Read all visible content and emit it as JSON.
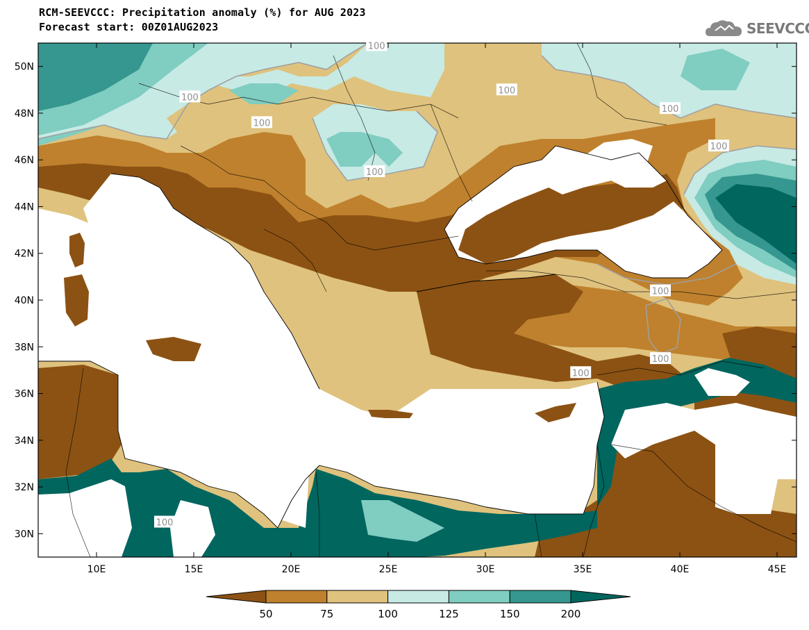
{
  "header": {
    "title": "RCM-SEEVCCC: Precipitation anomaly (%) for AUG 2023",
    "subtitle": "Forecast start: 00Z01AUG2023"
  },
  "logo": {
    "text": "SEEVCCC",
    "icon": "cloud-icon",
    "color": "#808080"
  },
  "map": {
    "lon_range": [
      7,
      46
    ],
    "lat_range": [
      29,
      51
    ],
    "lon_ticks": [
      10,
      15,
      20,
      25,
      30,
      35,
      40,
      45
    ],
    "lon_tick_labels": [
      "10E",
      "15E",
      "20E",
      "25E",
      "30E",
      "35E",
      "40E",
      "45E"
    ],
    "lat_ticks": [
      30,
      32,
      34,
      36,
      38,
      40,
      42,
      44,
      46,
      48,
      50
    ],
    "lat_tick_labels": [
      "30N",
      "32N",
      "34N",
      "36N",
      "38N",
      "40N",
      "42N",
      "44N",
      "46N",
      "48N",
      "50N"
    ],
    "contour_labels": [
      {
        "text": "100",
        "lon": 24.4,
        "lat": 50.9
      },
      {
        "text": "100",
        "lon": 14.8,
        "lat": 48.7
      },
      {
        "text": "100",
        "lon": 18.5,
        "lat": 47.6
      },
      {
        "text": "100",
        "lon": 31.1,
        "lat": 49.0
      },
      {
        "text": "100",
        "lon": 39.5,
        "lat": 48.2
      },
      {
        "text": "100",
        "lon": 24.3,
        "lat": 45.5
      },
      {
        "text": "100",
        "lon": 42.0,
        "lat": 46.6
      },
      {
        "text": "100",
        "lon": 39.0,
        "lat": 40.4
      },
      {
        "text": "100",
        "lon": 39.0,
        "lat": 37.5
      },
      {
        "text": "100",
        "lon": 34.9,
        "lat": 36.9
      },
      {
        "text": "100",
        "lon": 13.5,
        "lat": 30.5
      }
    ]
  },
  "legend": {
    "levels": [
      "50",
      "75",
      "100",
      "125",
      "150",
      "200"
    ],
    "colors": [
      "#8c5213",
      "#bf812d",
      "#dfc27d",
      "#c7eae5",
      "#80cdc1",
      "#35978f",
      "#01665e"
    ]
  }
}
